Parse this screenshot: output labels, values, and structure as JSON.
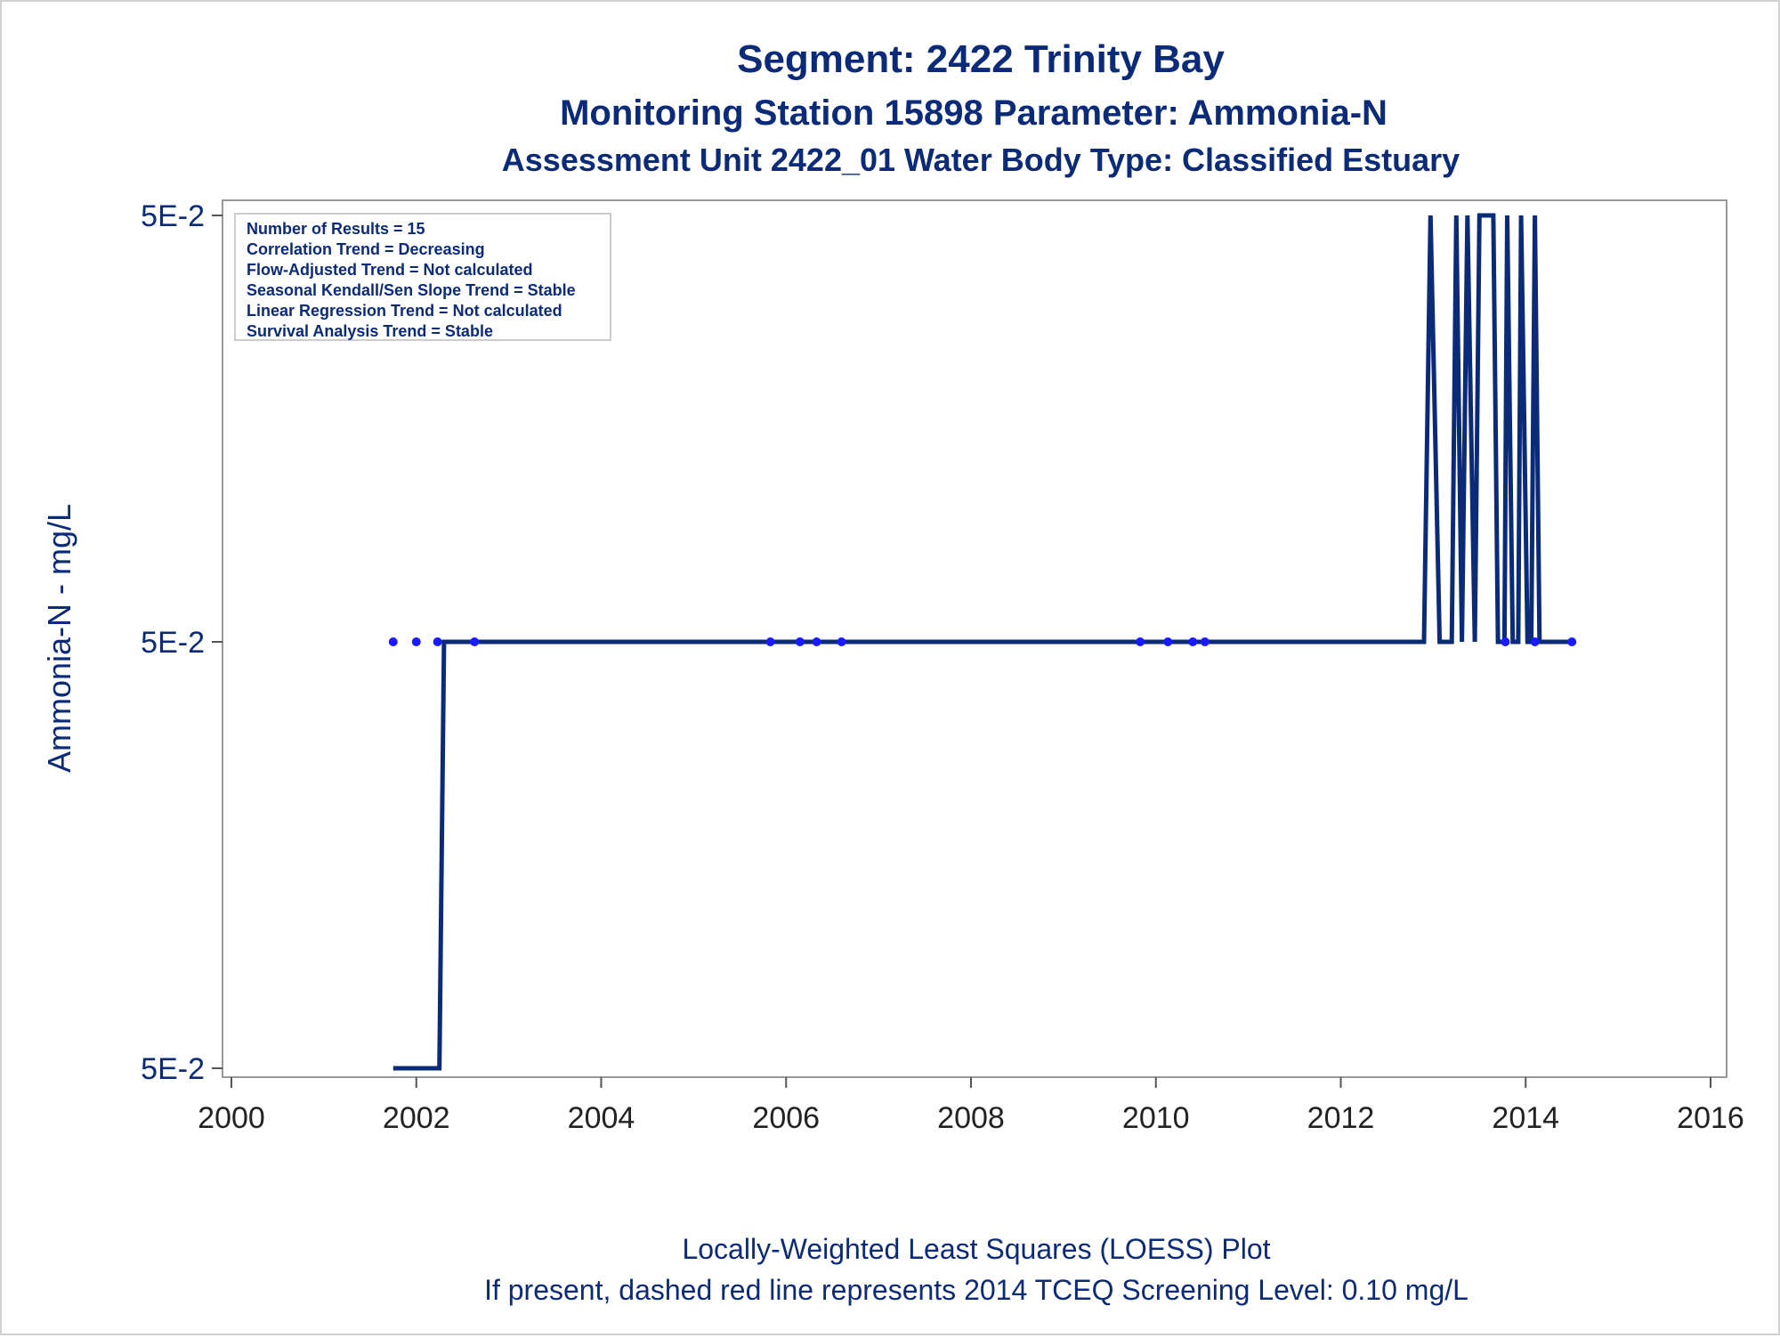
{
  "chart_data": {
    "type": "line",
    "title": "Segment: 2422  Trinity Bay",
    "subtitle": "Monitoring Station 15898 Parameter: Ammonia-N",
    "subtitle2": "Assessment Unit 2422_01   Water Body Type: Classified Estuary",
    "ylabel": "Ammonia-N - mg/L",
    "xlabel": "",
    "x_ticks": [
      "2000",
      "2002",
      "2004",
      "2006",
      "2008",
      "2010",
      "2012",
      "2014",
      "2016"
    ],
    "xlim": [
      2000,
      2016
    ],
    "y_ticks": [
      "5E-2",
      "5E-2",
      "5E-2"
    ],
    "ylim": [
      0.049,
      0.051
    ],
    "y_tick_values": [
      0.049,
      0.05,
      0.051
    ],
    "grid": false,
    "footnote1": "Locally-Weighted Least Squares (LOESS) Plot",
    "footnote2": "If present, dashed red line represents 2014 TCEQ Screening Level: 0.10 mg/L",
    "stats_box": [
      "Number of Results = 15",
      "Correlation Trend = Decreasing",
      "Flow-Adjusted Trend = Not calculated",
      "Seasonal Kendall/Sen Slope Trend = Stable",
      "Linear Regression Trend = Not calculated",
      "Survival Analysis Trend = Stable"
    ],
    "series": [
      {
        "type": "scatter",
        "color": "#1a1aff",
        "points": [
          [
            2001.75,
            0.05
          ],
          [
            2002.0,
            0.05
          ],
          [
            2002.23,
            0.05
          ],
          [
            2002.63,
            0.05
          ],
          [
            2005.83,
            0.05
          ],
          [
            2006.15,
            0.05
          ],
          [
            2006.33,
            0.05
          ],
          [
            2006.6,
            0.05
          ],
          [
            2009.83,
            0.05
          ],
          [
            2010.13,
            0.05
          ],
          [
            2010.4,
            0.05
          ],
          [
            2010.53,
            0.05
          ],
          [
            2013.78,
            0.05
          ],
          [
            2014.1,
            0.05
          ],
          [
            2014.5,
            0.05
          ]
        ]
      },
      {
        "type": "line",
        "color": "#0b2a78",
        "points": [
          [
            2001.75,
            0.049
          ],
          [
            2002.25,
            0.049
          ],
          [
            2002.3,
            0.05
          ],
          [
            2012.9,
            0.05
          ],
          [
            2012.97,
            0.051
          ],
          [
            2013.07,
            0.05
          ],
          [
            2013.2,
            0.05
          ],
          [
            2013.25,
            0.051
          ],
          [
            2013.31,
            0.05
          ],
          [
            2013.37,
            0.051
          ],
          [
            2013.45,
            0.05
          ],
          [
            2013.5,
            0.051
          ],
          [
            2013.65,
            0.051
          ],
          [
            2013.7,
            0.05
          ],
          [
            2013.77,
            0.05
          ],
          [
            2013.8,
            0.051
          ],
          [
            2013.86,
            0.05
          ],
          [
            2013.92,
            0.05
          ],
          [
            2013.95,
            0.051
          ],
          [
            2014.02,
            0.05
          ],
          [
            2014.06,
            0.05
          ],
          [
            2014.1,
            0.051
          ],
          [
            2014.15,
            0.05
          ],
          [
            2014.5,
            0.05
          ]
        ]
      }
    ]
  }
}
